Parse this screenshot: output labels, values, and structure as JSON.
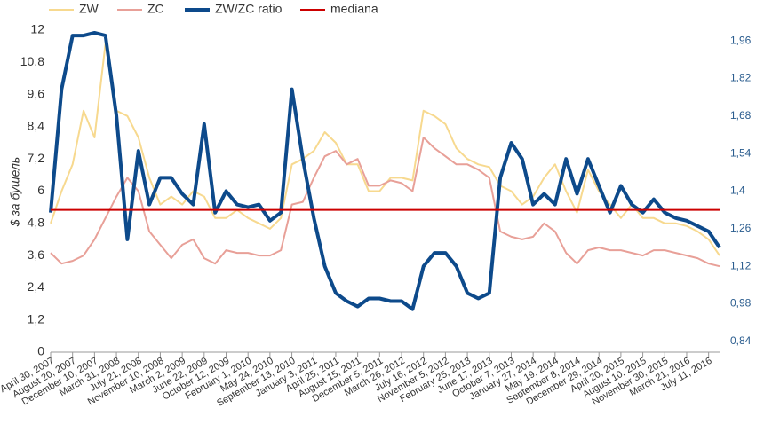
{
  "chart_data": {
    "type": "line",
    "y_axis_title": "$ за бушель",
    "categories": [
      "April 30, 2007",
      null,
      "August 20, 2007",
      null,
      "December 10, 2007",
      null,
      "March 31, 2008",
      null,
      "July 21, 2008",
      null,
      "November 10, 2008",
      null,
      "March 2, 2009",
      null,
      "June 22, 2009",
      null,
      "October 12, 2009",
      null,
      "February 1, 2010",
      null,
      "May 24, 2010",
      null,
      "September 13, 2010",
      null,
      "January 3, 2011",
      null,
      "April 25, 2011",
      null,
      "August 15, 2011",
      null,
      "December 5, 2011",
      null,
      "March 26, 2012",
      null,
      "July 16, 2012",
      null,
      "November 5, 2012",
      null,
      "February 25, 2013",
      null,
      "June 17, 2013",
      null,
      "October 7, 2013",
      null,
      "January 27, 2014",
      null,
      "May 19, 2014",
      null,
      "September 8, 2014",
      null,
      "December 29, 2014",
      null,
      "April 20, 2015",
      null,
      "August 10, 2015",
      null,
      "November 30, 2015",
      null,
      "March 21, 2016",
      null,
      "July 11, 2016",
      null
    ],
    "series": [
      {
        "name": "ZW",
        "color": "#f7d98f",
        "width": 2,
        "values": [
          4.8,
          6.0,
          7.0,
          9.0,
          8.0,
          11.5,
          9.0,
          8.8,
          8.0,
          6.5,
          5.5,
          5.8,
          5.5,
          6.0,
          5.8,
          5.0,
          5.0,
          5.3,
          5.0,
          4.8,
          4.6,
          5.0,
          7.0,
          7.2,
          7.5,
          8.2,
          7.8,
          7.0,
          7.0,
          6.0,
          6.0,
          6.5,
          6.5,
          6.4,
          9.0,
          8.8,
          8.5,
          7.6,
          7.2,
          7.0,
          6.9,
          6.2,
          6.0,
          5.5,
          5.8,
          6.5,
          7.0,
          6.0,
          5.2,
          6.8,
          6.0,
          5.5,
          5.0,
          5.5,
          5.0,
          5.0,
          4.8,
          4.8,
          4.7,
          4.5,
          4.2,
          3.6
        ]
      },
      {
        "name": "ZC",
        "color": "#e8a098",
        "width": 2,
        "values": [
          3.7,
          3.3,
          3.4,
          3.6,
          4.2,
          5.0,
          5.8,
          6.5,
          6.0,
          4.5,
          4.0,
          3.5,
          4.0,
          4.2,
          3.5,
          3.3,
          3.8,
          3.7,
          3.7,
          3.6,
          3.6,
          3.8,
          5.5,
          5.6,
          6.5,
          7.3,
          7.5,
          7.0,
          7.2,
          6.2,
          6.2,
          6.4,
          6.3,
          6.0,
          8.0,
          7.6,
          7.3,
          7.0,
          7.0,
          6.8,
          6.5,
          4.5,
          4.3,
          4.2,
          4.3,
          4.8,
          4.5,
          3.7,
          3.3,
          3.8,
          3.9,
          3.8,
          3.8,
          3.7,
          3.6,
          3.8,
          3.8,
          3.7,
          3.6,
          3.5,
          3.3,
          3.2
        ]
      },
      {
        "name": "ZW/ZC ratio",
        "color": "#0d4a8b",
        "width": 4,
        "axis": "y2",
        "values": [
          1.32,
          1.78,
          1.98,
          1.98,
          1.99,
          1.98,
          1.68,
          1.22,
          1.55,
          1.35,
          1.45,
          1.45,
          1.39,
          1.35,
          1.65,
          1.32,
          1.4,
          1.35,
          1.34,
          1.35,
          1.29,
          1.32,
          1.78,
          1.52,
          1.3,
          1.12,
          1.02,
          0.99,
          0.97,
          1.0,
          1.0,
          0.99,
          0.99,
          0.96,
          1.12,
          1.17,
          1.17,
          1.12,
          1.02,
          1.0,
          1.02,
          1.45,
          1.58,
          1.52,
          1.35,
          1.39,
          1.35,
          1.52,
          1.39,
          1.52,
          1.42,
          1.32,
          1.42,
          1.35,
          1.32,
          1.37,
          1.32,
          1.3,
          1.29,
          1.27,
          1.25,
          1.19
        ]
      },
      {
        "name": "mediana",
        "color": "#cc0000",
        "width": 2,
        "axis": "y2",
        "value": 1.33
      }
    ],
    "ylim": [
      0,
      12
    ],
    "yticks": [
      0,
      {
        "value": 1.2,
        "label": "1,2"
      },
      {
        "value": 2.4,
        "label": "2,4"
      },
      {
        "value": 3.6,
        "label": "3,6"
      },
      {
        "value": 4.8,
        "label": "4,8"
      },
      6,
      {
        "value": 7.2,
        "label": "7,2"
      },
      {
        "value": 8.4,
        "label": "8,4"
      },
      {
        "value": 9.6,
        "label": "9,6"
      },
      {
        "value": 10.8,
        "label": "10,8"
      },
      12
    ],
    "y2lim": [
      0.8,
      2.0
    ],
    "y2ticks": [
      {
        "value": 0.84,
        "label": "0,84"
      },
      {
        "value": 0.98,
        "label": "0,98"
      },
      {
        "value": 1.12,
        "label": "1,12"
      },
      {
        "value": 1.26,
        "label": "1,26"
      },
      {
        "value": 1.4,
        "label": "1,4"
      },
      {
        "value": 1.54,
        "label": "1,54"
      },
      {
        "value": 1.68,
        "label": "1,68"
      },
      {
        "value": 1.82,
        "label": "1,82"
      },
      {
        "value": 1.96,
        "label": "1,96"
      }
    ]
  }
}
